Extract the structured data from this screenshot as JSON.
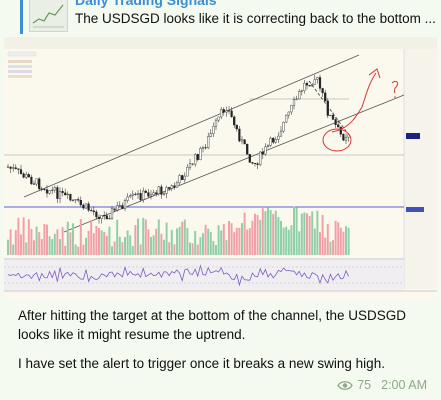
{
  "reply": {
    "title": "Daily Trading Signals",
    "text": "The USDSGD looks like it is correcting back to the bottom ..."
  },
  "message": {
    "paragraphs": [
      "After hitting the target at the bottom of the channel, the USDSGD looks like it might resume the uptrend.",
      "I have set the alert to trigger once it breaks a new swing high."
    ],
    "views": "75",
    "time": "2:00 AM"
  }
}
